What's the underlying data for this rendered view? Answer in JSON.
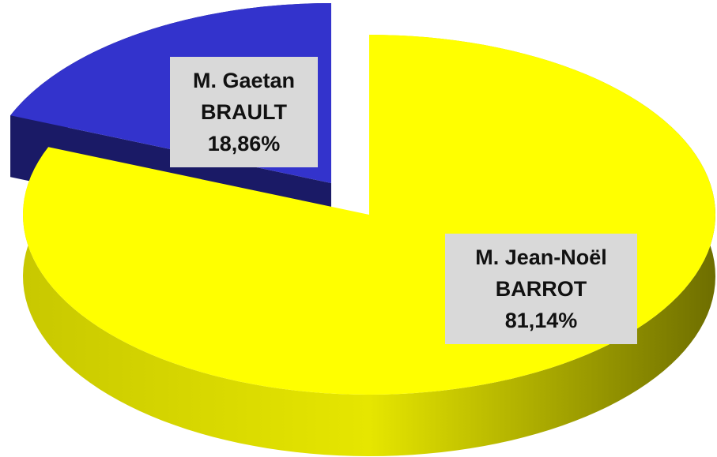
{
  "chart_data": {
    "type": "pie",
    "categories": [
      "M. Gaetan BRAULT",
      "M. Jean-Noël BARROT"
    ],
    "values": [
      18.86,
      81.14
    ],
    "value_labels": [
      "18,86%",
      "81,14%"
    ],
    "colors": [
      "#3333cc",
      "#ffff00"
    ],
    "side_colors": [
      "#1a1a66",
      "#8c8c00"
    ]
  }
}
